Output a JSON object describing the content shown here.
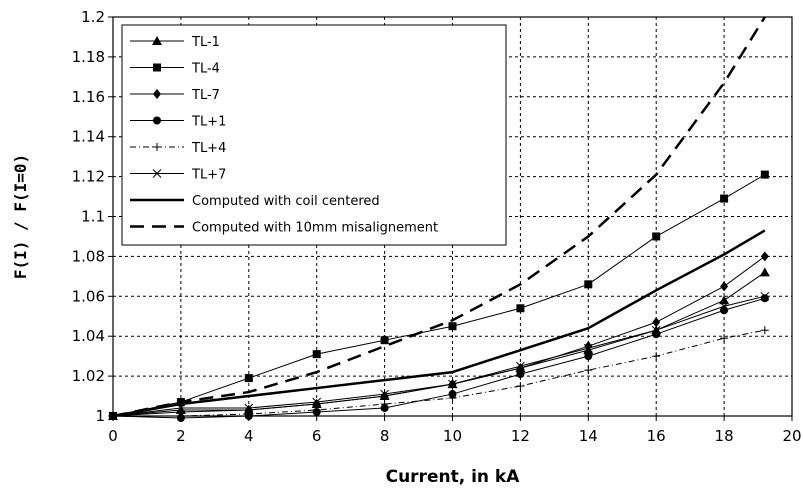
{
  "chart_data": {
    "type": "line",
    "title": "",
    "xlabel": "Current, in kA",
    "ylabel": "F(I) / F(I=0)",
    "xlim": [
      0,
      20
    ],
    "ylim": [
      1,
      1.2
    ],
    "x_ticks": [
      "0",
      "2",
      "4",
      "6",
      "8",
      "10",
      "12",
      "14",
      "16",
      "18",
      "20"
    ],
    "y_ticks": [
      "1",
      "1.02",
      "1.04",
      "1.06",
      "1.08",
      "1.1",
      "1.12",
      "1.14",
      "1.16",
      "1.18",
      "1.2"
    ],
    "grid": true,
    "legend_position": "top-left",
    "series": [
      {
        "name": "TL-1",
        "marker": "triangle",
        "dash": "solid",
        "width": 1,
        "x": [
          0,
          2,
          4,
          6,
          8,
          10,
          12,
          14,
          16,
          18,
          19.2
        ],
        "y": [
          1.0,
          1.003,
          1.003,
          1.006,
          1.01,
          1.016,
          1.024,
          1.033,
          1.043,
          1.058,
          1.072
        ]
      },
      {
        "name": "TL-4",
        "marker": "square",
        "dash": "solid",
        "width": 1,
        "x": [
          0,
          2,
          4,
          6,
          8,
          10,
          12,
          14,
          16,
          18,
          19.2
        ],
        "y": [
          1.0,
          1.007,
          1.019,
          1.031,
          1.038,
          1.045,
          1.054,
          1.066,
          1.09,
          1.109,
          1.121
        ]
      },
      {
        "name": "TL-7",
        "marker": "diamond",
        "dash": "solid",
        "width": 1,
        "x": [
          0,
          2,
          4,
          6,
          8,
          10,
          12,
          14,
          16,
          18,
          19.2
        ],
        "y": [
          1.0,
          1.002,
          1.003,
          1.006,
          1.01,
          1.016,
          1.024,
          1.035,
          1.047,
          1.065,
          1.08
        ]
      },
      {
        "name": "TL+1",
        "marker": "circle",
        "dash": "solid",
        "width": 1,
        "x": [
          0,
          2,
          4,
          6,
          8,
          10,
          12,
          14,
          16,
          18,
          19.2
        ],
        "y": [
          1.0,
          0.999,
          1.0,
          1.002,
          1.004,
          1.011,
          1.021,
          1.03,
          1.041,
          1.053,
          1.059
        ]
      },
      {
        "name": "TL+4",
        "marker": "plus",
        "dash": "dashdot",
        "width": 1,
        "x": [
          0,
          2,
          4,
          6,
          8,
          10,
          12,
          14,
          16,
          18,
          19.2
        ],
        "y": [
          1.0,
          1.0,
          1.001,
          1.003,
          1.006,
          1.009,
          1.015,
          1.023,
          1.03,
          1.039,
          1.043
        ]
      },
      {
        "name": "TL+7",
        "marker": "x",
        "dash": "solid",
        "width": 1,
        "x": [
          0,
          2,
          4,
          6,
          8,
          10,
          12,
          14,
          16,
          18,
          19.2
        ],
        "y": [
          1.0,
          1.004,
          1.004,
          1.007,
          1.011,
          1.016,
          1.025,
          1.034,
          1.043,
          1.055,
          1.06
        ]
      },
      {
        "name": "Computed with coil centered",
        "marker": "none",
        "dash": "solid",
        "width": 2.5,
        "x": [
          0,
          2,
          4,
          6,
          8,
          10,
          12,
          14,
          16,
          18,
          19.2
        ],
        "y": [
          1.0,
          1.006,
          1.01,
          1.014,
          1.018,
          1.022,
          1.033,
          1.044,
          1.063,
          1.081,
          1.093
        ]
      },
      {
        "name": "Computed with 10mm misalignement",
        "marker": "none",
        "dash": "longdash",
        "width": 2.5,
        "x": [
          0,
          2,
          4,
          6,
          8,
          10,
          12,
          14,
          16,
          18,
          19.2
        ],
        "y": [
          1.0,
          1.007,
          1.012,
          1.022,
          1.035,
          1.048,
          1.066,
          1.09,
          1.121,
          1.167,
          1.2
        ]
      }
    ]
  }
}
